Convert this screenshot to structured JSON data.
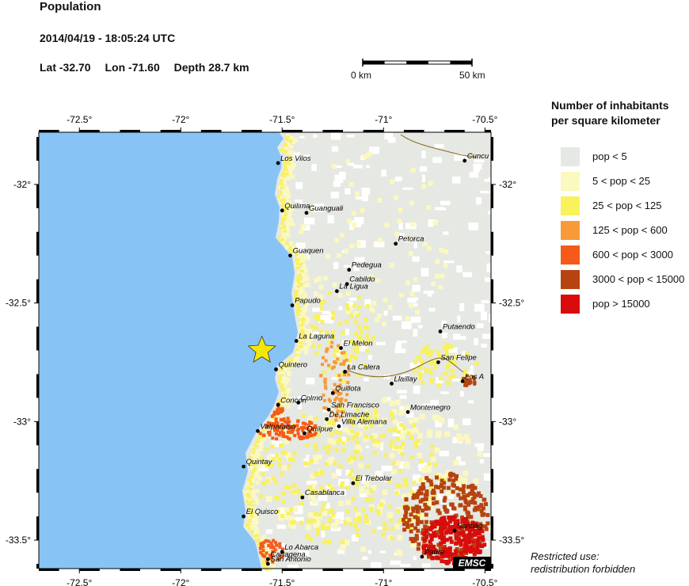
{
  "header": {
    "title": "Population",
    "datetime": "2014/04/19 - 18:05:24 UTC",
    "lat_label": "Lat -32.70",
    "lon_label": "Lon -71.60",
    "depth_label": "Depth  28.7 km"
  },
  "scale_bar": {
    "start_label": "0 km",
    "end_label": "50 km",
    "length_km": 50
  },
  "map": {
    "lon_range": [
      -72.7,
      -70.47
    ],
    "lat_range": [
      -33.62,
      -31.78
    ],
    "lon_ticks": [
      {
        "value": -72.5,
        "label": "-72.5°"
      },
      {
        "value": -72.0,
        "label": "-72°"
      },
      {
        "value": -71.5,
        "label": "-71.5°"
      },
      {
        "value": -71.0,
        "label": "-71°"
      },
      {
        "value": -70.5,
        "label": "-70.5°"
      }
    ],
    "lat_ticks": [
      {
        "value": -32.0,
        "label": "-32°"
      },
      {
        "value": -32.5,
        "label": "-32.5°"
      },
      {
        "value": -33.0,
        "label": "-33°"
      },
      {
        "value": -33.5,
        "label": "-33.5°"
      }
    ],
    "colors": {
      "ocean": "#87c4f5",
      "land": "#e6e8e3"
    },
    "epicenter": {
      "lon": -71.6,
      "lat": -32.7,
      "color": "#f5e800",
      "icon": "star-icon"
    },
    "cities": [
      {
        "name": "Los Vilos",
        "lon": -71.52,
        "lat": -31.91
      },
      {
        "name": "Cuncumen",
        "label": "Cuncu",
        "lon": -70.6,
        "lat": -31.9
      },
      {
        "name": "Quilimari",
        "label": "Quilima",
        "lon": -71.5,
        "lat": -32.11
      },
      {
        "name": "Guanguali",
        "lon": -71.38,
        "lat": -32.12
      },
      {
        "name": "Petorca",
        "lon": -70.94,
        "lat": -32.25
      },
      {
        "name": "Guaquen",
        "lon": -71.46,
        "lat": -32.3
      },
      {
        "name": "Pedegua",
        "lon": -71.17,
        "lat": -32.36
      },
      {
        "name": "Cabildo",
        "lon": -71.18,
        "lat": -32.42
      },
      {
        "name": "La Ligua",
        "lon": -71.23,
        "lat": -32.45
      },
      {
        "name": "Papudo",
        "lon": -71.45,
        "lat": -32.51
      },
      {
        "name": "Putaendo",
        "lon": -70.72,
        "lat": -32.62
      },
      {
        "name": "La Laguna",
        "lon": -71.43,
        "lat": -32.66
      },
      {
        "name": "El Melon",
        "lon": -71.21,
        "lat": -32.69
      },
      {
        "name": "San Felipe",
        "lon": -70.73,
        "lat": -32.75
      },
      {
        "name": "Quintero",
        "lon": -71.53,
        "lat": -32.78
      },
      {
        "name": "La Calera",
        "lon": -71.19,
        "lat": -32.79
      },
      {
        "name": "Llaillay",
        "lon": -70.96,
        "lat": -32.84
      },
      {
        "name": "Los Andes",
        "label": "Los A",
        "lon": -70.61,
        "lat": -32.83
      },
      {
        "name": "Quillota",
        "lon": -71.25,
        "lat": -32.88
      },
      {
        "name": "Colmo",
        "lon": -71.42,
        "lat": -32.92
      },
      {
        "name": "Concon",
        "lon": -71.52,
        "lat": -32.93
      },
      {
        "name": "San Francisco",
        "lon": -71.27,
        "lat": -32.95
      },
      {
        "name": "Montenegro",
        "lon": -70.88,
        "lat": -32.96
      },
      {
        "name": "De Limache",
        "lon": -71.28,
        "lat": -32.99
      },
      {
        "name": "Villa Alemana",
        "lon": -71.22,
        "lat": -33.02
      },
      {
        "name": "Valparaiso",
        "lon": -71.62,
        "lat": -33.04
      },
      {
        "name": "Quilpue",
        "lon": -71.39,
        "lat": -33.05
      },
      {
        "name": "Quintay",
        "lon": -71.69,
        "lat": -33.19
      },
      {
        "name": "El Trebolar",
        "lon": -71.15,
        "lat": -33.26
      },
      {
        "name": "Casablanca",
        "lon": -71.4,
        "lat": -33.32
      },
      {
        "name": "El Quisco",
        "lon": -71.69,
        "lat": -33.4
      },
      {
        "name": "Santiago",
        "label": "Santiag",
        "lon": -70.65,
        "lat": -33.46
      },
      {
        "name": "Lo Abarca",
        "lon": -71.5,
        "lat": -33.55
      },
      {
        "name": "Cartagena",
        "lon": -71.57,
        "lat": -33.58
      },
      {
        "name": "San Antonio",
        "lon": -71.57,
        "lat": -33.6
      },
      {
        "name": "Padre Hurtado",
        "label": "Padre",
        "lon": -70.81,
        "lat": -33.57
      }
    ],
    "watermark": "EMSC"
  },
  "legend": {
    "title_line1": "Number of inhabitants",
    "title_line2": "per square kilometer",
    "items": [
      {
        "label": "pop < 5",
        "color": "#e6e8e3"
      },
      {
        "label": "5 < pop < 25",
        "color": "#fbf8c0"
      },
      {
        "label": "25 < pop < 125",
        "color": "#f9f25a"
      },
      {
        "label": "125 < pop < 600",
        "color": "#f89a38"
      },
      {
        "label": "600 < pop < 3000",
        "color": "#f65a18"
      },
      {
        "label": "3000 < pop < 15000",
        "color": "#b74310"
      },
      {
        "label": "pop > 15000",
        "color": "#d80c0c"
      }
    ]
  },
  "footnote": {
    "line1": "Restricted use:",
    "line2": "redistribution forbidden"
  }
}
